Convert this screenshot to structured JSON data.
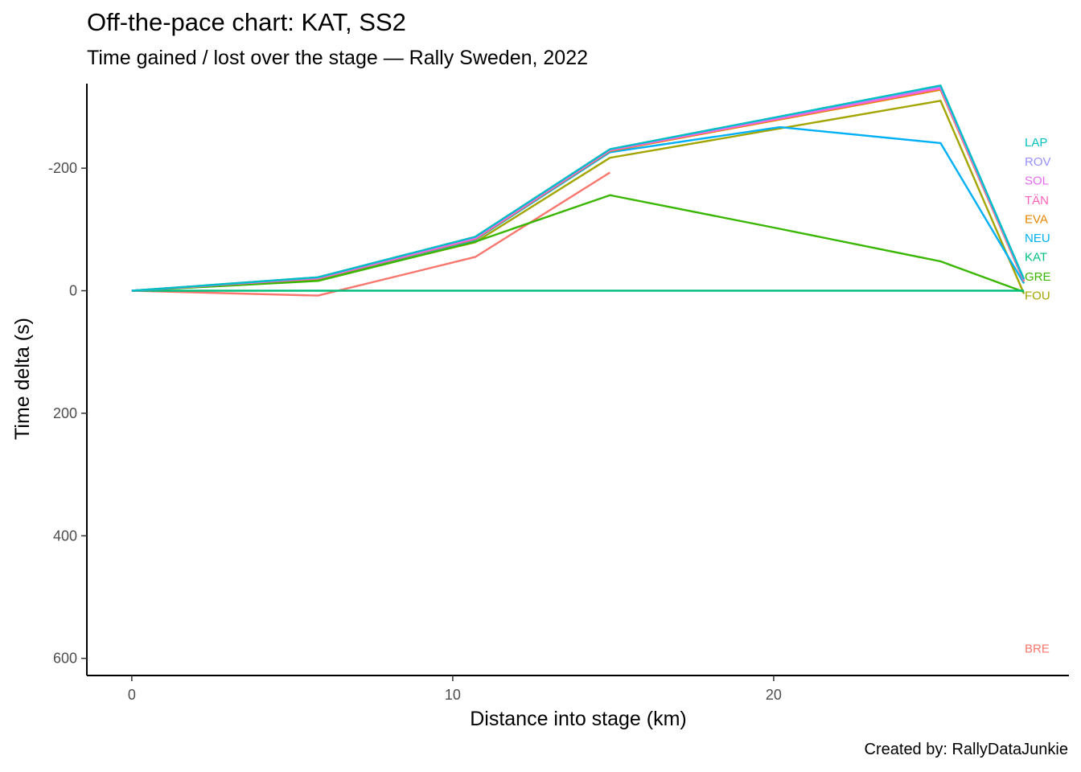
{
  "header": {
    "title": "Off-the-pace chart: KAT, SS2",
    "subtitle": "Time gained / lost over the stage — Rally Sweden, 2022"
  },
  "footer": {
    "caption": "Created by: RallyDataJunkie"
  },
  "chart_data": {
    "type": "line",
    "title": "Off-the-pace chart: KAT, SS2",
    "subtitle": "Time gained / lost over the stage — Rally Sweden, 2022",
    "xlabel": "Distance into stage (km)",
    "ylabel": "Time delta (s)",
    "xlim": [
      -1.4,
      29.2
    ],
    "ylim": [
      -338,
      628
    ],
    "y_reversed": true,
    "x_ticks": [
      0,
      10,
      20
    ],
    "y_ticks": [
      -200,
      0,
      200,
      400,
      600
    ],
    "y_tick_labels": [
      "-200",
      "0",
      "200",
      "400",
      "600"
    ],
    "grid": false,
    "legend": "none (direct end labels at right)",
    "series": [
      {
        "name": "BRE",
        "color": "#F8766D",
        "x": [
          0,
          5.8,
          10.7,
          14.9
        ],
        "y": [
          0,
          8,
          -55,
          -193
        ]
      },
      {
        "name": "FOU",
        "color": "#A3A500",
        "x": [
          0,
          5.8,
          10.7,
          14.9,
          25.2,
          27.8
        ],
        "y": [
          0,
          -18,
          -79,
          -217,
          -310,
          5
        ]
      },
      {
        "name": "GRE",
        "color": "#39B600",
        "x": [
          0,
          5.8,
          10.7,
          14.9,
          20,
          25.2,
          27.8
        ],
        "y": [
          0,
          -16,
          -80,
          -156,
          -103,
          -48,
          2
        ]
      },
      {
        "name": "KAT",
        "color": "#00BF7D",
        "x": [
          0,
          27.8
        ],
        "y": [
          0,
          0
        ]
      },
      {
        "name": "NEU",
        "color": "#00B0F6",
        "x": [
          0,
          5.8,
          10.7,
          14.9,
          20.2,
          25.2,
          27.8
        ],
        "y": [
          0,
          -20,
          -83,
          -226,
          -267,
          -241,
          -12
        ]
      },
      {
        "name": "EVA",
        "color": "#E58700",
        "x": [
          0,
          5.8,
          10.7,
          14.9,
          25.2,
          27.8
        ],
        "y": [
          0,
          -20,
          -84,
          -228,
          -328,
          -15
        ]
      },
      {
        "name": "TÄN",
        "color": "#FF62BC",
        "x": [
          0,
          5.8,
          10.7,
          14.9,
          25.2,
          27.8
        ],
        "y": [
          0,
          -20,
          -85,
          -229,
          -330,
          -16
        ]
      },
      {
        "name": "SOL",
        "color": "#E76BF3",
        "x": [
          0,
          5.8,
          10.7,
          14.9,
          25.2,
          27.8
        ],
        "y": [
          0,
          -21,
          -86,
          -230,
          -332,
          -17
        ]
      },
      {
        "name": "ROV",
        "color": "#9590FF",
        "x": [
          0,
          5.8,
          10.7,
          14.9,
          25.2,
          27.8
        ],
        "y": [
          0,
          -22,
          -88,
          -231,
          -334,
          -18
        ]
      },
      {
        "name": "LAP",
        "color": "#00BFC4",
        "x": [
          0,
          5.8,
          10.7,
          14.9,
          25.2,
          27.8
        ],
        "y": [
          0,
          -22,
          -88,
          -231,
          -335,
          -19
        ]
      }
    ],
    "end_labels": [
      {
        "text": "LAP",
        "color": "#00BFC4",
        "y": -242
      },
      {
        "text": "ROV",
        "color": "#9590FF",
        "y": -211
      },
      {
        "text": "SOL",
        "color": "#E76BF3",
        "y": -180
      },
      {
        "text": "TÄN",
        "color": "#FF62BC",
        "y": -148
      },
      {
        "text": "EVA",
        "color": "#E58700",
        "y": -117
      },
      {
        "text": "NEU",
        "color": "#00B0F6",
        "y": -86
      },
      {
        "text": "KAT",
        "color": "#00BF7D",
        "y": -55
      },
      {
        "text": "GRE",
        "color": "#39B600",
        "y": -23
      },
      {
        "text": "FOU",
        "color": "#A3A500",
        "y": 8
      },
      {
        "text": "BRE",
        "color": "#F8766D",
        "y": 584
      }
    ]
  }
}
